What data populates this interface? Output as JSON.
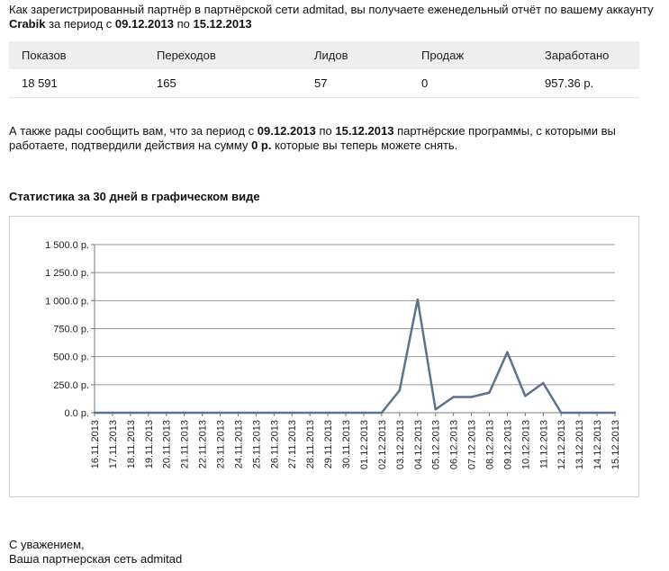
{
  "intro": {
    "text1": "Как зарегистрированный партнёр в партнёрской сети admitad, вы получаете еженедельный отчёт по вашему аккаунту ",
    "account": "Crabik",
    "text2": " за период с ",
    "date_from": "09.12.2013",
    "text3": " по ",
    "date_to": "15.12.2013"
  },
  "table": {
    "headers": [
      "Показов",
      "Переходов",
      "Лидов",
      "Продаж",
      "Заработано"
    ],
    "row": [
      "18 591",
      "165",
      "57",
      "0",
      "957.36 р."
    ]
  },
  "note": {
    "text1": "А также рады сообщить вам, что за период с ",
    "date_from": "09.12.2013",
    "text2": " по ",
    "date_to": "15.12.2013",
    "text3": " партнёрские программы, с которыми вы работаете, подтвердили действия на сумму ",
    "amount": "0 р.",
    "text4": " которые вы теперь можете снять."
  },
  "chart_title": "Статистика за 30 дней в графическом виде",
  "chart_data": {
    "type": "line",
    "x": [
      "16.11.2013",
      "17.11.2013",
      "18.11.2013",
      "19.11.2013",
      "20.11.2013",
      "21.11.2013",
      "22.11.2013",
      "23.11.2013",
      "24.11.2013",
      "25.11.2013",
      "26.11.2013",
      "27.11.2013",
      "28.11.2013",
      "29.11.2013",
      "30.11.2013",
      "01.12.2013",
      "02.12.2013",
      "03.12.2013",
      "04.12.2013",
      "05.12.2013",
      "06.12.2013",
      "07.12.2013",
      "08.12.2013",
      "09.12.2013",
      "10.12.2013",
      "11.12.2013",
      "12.12.2013",
      "13.12.2013",
      "14.12.2013",
      "15.12.2013"
    ],
    "series": [
      {
        "values": [
          0,
          0,
          0,
          0,
          0,
          0,
          0,
          0,
          0,
          0,
          0,
          0,
          0,
          0,
          0,
          0,
          0,
          200,
          1010,
          30,
          140,
          140,
          180,
          540,
          150,
          265,
          0,
          0,
          0,
          0
        ]
      }
    ],
    "y_ticks": [
      "0.0 р.",
      "250.0 р.",
      "500.0 р.",
      "750.0 р.",
      "1 000.0 р.",
      "1 250.0 р.",
      "1 500.0 р."
    ],
    "ylim": [
      0,
      1500
    ],
    "grid": true,
    "line_color": "#5a7390"
  },
  "signature": {
    "line1": "С уважением,",
    "line2": "Ваша партнерская сеть admitad"
  }
}
